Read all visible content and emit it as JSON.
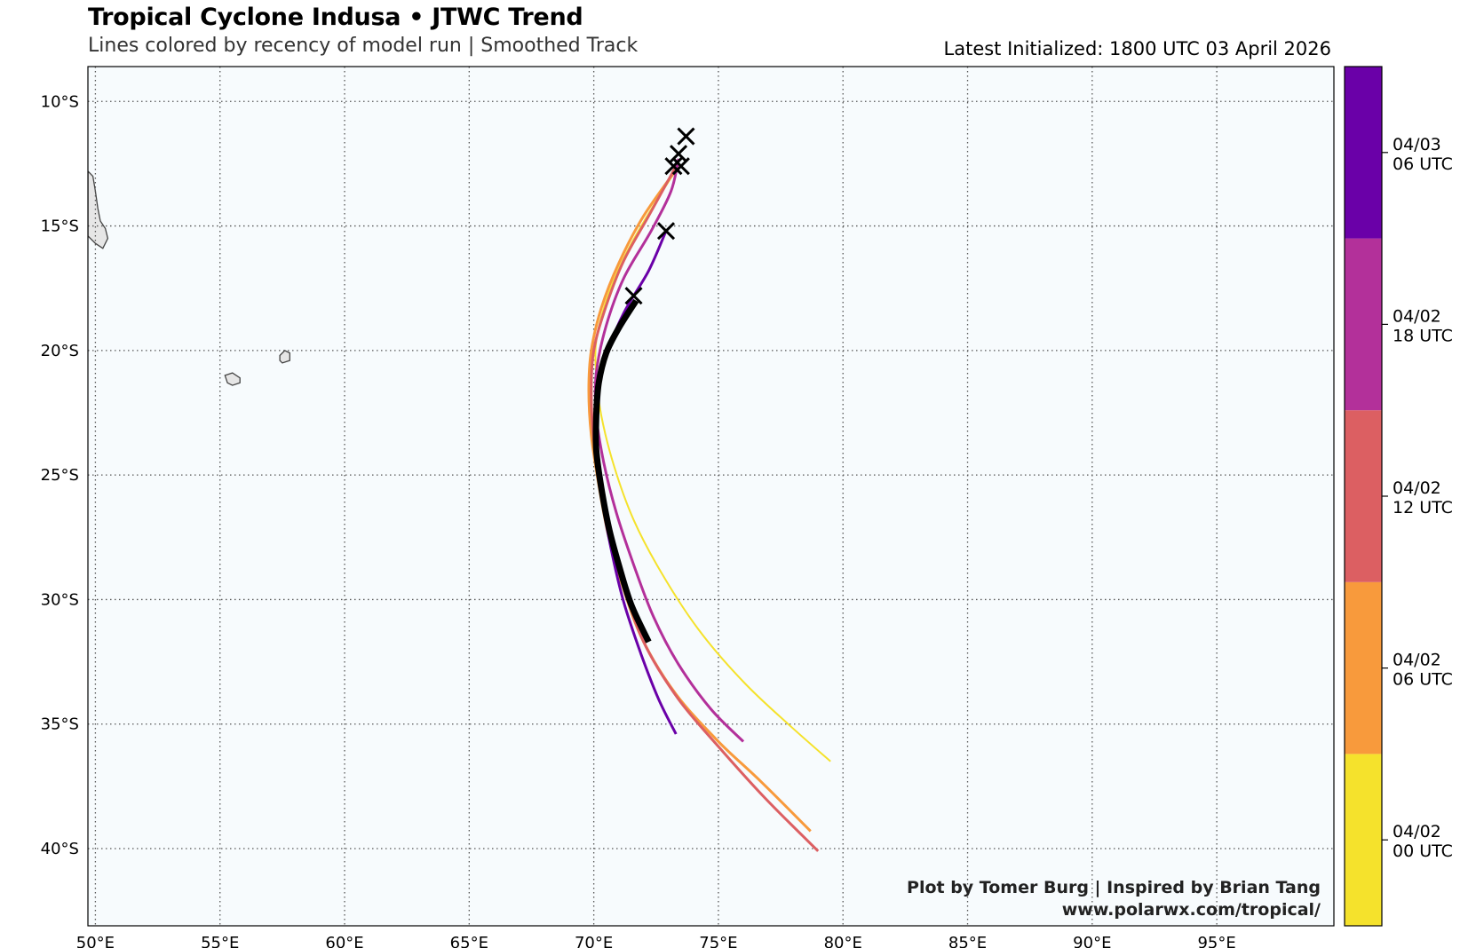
{
  "header": {
    "title": "Tropical Cyclone Indusa • JTWC Trend",
    "subtitle": "Lines colored by recency of model run | Smoothed Track",
    "latest": "Latest Initialized: 1800 UTC 03 April 2026"
  },
  "credits": {
    "line1": "Plot by Tomer Burg | Inspired by Brian Tang",
    "line2": "www.polarwx.com/tropical/"
  },
  "map": {
    "extent": {
      "lon": [
        49.7,
        99.7
      ],
      "lat": [
        -43.1,
        -8.6
      ]
    },
    "background": "#f7fbfd",
    "grid_color": "#555555",
    "land_color": "#e6e6e6",
    "lon_ticks": [
      {
        "value": 50,
        "label": "50°E"
      },
      {
        "value": 55,
        "label": "55°E"
      },
      {
        "value": 60,
        "label": "60°E"
      },
      {
        "value": 65,
        "label": "65°E"
      },
      {
        "value": 70,
        "label": "70°E"
      },
      {
        "value": 75,
        "label": "75°E"
      },
      {
        "value": 80,
        "label": "80°E"
      },
      {
        "value": 85,
        "label": "85°E"
      },
      {
        "value": 90,
        "label": "90°E"
      },
      {
        "value": 95,
        "label": "95°E"
      }
    ],
    "lat_ticks": [
      {
        "value": -10,
        "label": "10°S"
      },
      {
        "value": -15,
        "label": "15°S"
      },
      {
        "value": -20,
        "label": "20°S"
      },
      {
        "value": -25,
        "label": "25°S"
      },
      {
        "value": -30,
        "label": "30°S"
      },
      {
        "value": -35,
        "label": "35°S"
      },
      {
        "value": -40,
        "label": "40°S"
      }
    ],
    "islands": [
      {
        "name": "madagascar-coast",
        "points": [
          [
            49.7,
            -12.8
          ],
          [
            49.9,
            -13.0
          ],
          [
            50.0,
            -13.6
          ],
          [
            50.1,
            -14.3
          ],
          [
            50.2,
            -14.8
          ],
          [
            50.4,
            -15.1
          ],
          [
            50.5,
            -15.5
          ],
          [
            50.3,
            -15.9
          ],
          [
            50.0,
            -15.7
          ],
          [
            49.7,
            -15.4
          ]
        ]
      },
      {
        "name": "reunion",
        "points": [
          [
            55.2,
            -21.0
          ],
          [
            55.5,
            -20.9
          ],
          [
            55.8,
            -21.1
          ],
          [
            55.8,
            -21.3
          ],
          [
            55.5,
            -21.4
          ],
          [
            55.3,
            -21.3
          ]
        ]
      },
      {
        "name": "mauritius",
        "points": [
          [
            57.4,
            -20.2
          ],
          [
            57.6,
            -20.0
          ],
          [
            57.8,
            -20.1
          ],
          [
            57.8,
            -20.4
          ],
          [
            57.5,
            -20.5
          ],
          [
            57.4,
            -20.4
          ]
        ]
      }
    ]
  },
  "tracks": [
    {
      "run": "04/02 00 UTC",
      "color": "#f5e22c",
      "width": 2,
      "points": [
        [
          73.4,
          -12.6
        ],
        [
          72.2,
          -14.5
        ],
        [
          71.2,
          -16.3
        ],
        [
          70.5,
          -18.0
        ],
        [
          70.1,
          -19.6
        ],
        [
          70.1,
          -21.0
        ],
        [
          70.3,
          -22.6
        ],
        [
          70.8,
          -24.6
        ],
        [
          71.6,
          -26.8
        ],
        [
          72.7,
          -28.9
        ],
        [
          74.2,
          -31.2
        ],
        [
          76.0,
          -33.3
        ],
        [
          77.8,
          -35.0
        ],
        [
          79.5,
          -36.5
        ]
      ]
    },
    {
      "run": "04/02 06 UTC",
      "color": "#f89a3c",
      "width": 3,
      "points": [
        [
          73.4,
          -12.6
        ],
        [
          72.0,
          -14.6
        ],
        [
          71.0,
          -16.5
        ],
        [
          70.3,
          -18.3
        ],
        [
          69.9,
          -20.0
        ],
        [
          69.8,
          -21.6
        ],
        [
          69.9,
          -23.4
        ],
        [
          70.2,
          -25.4
        ],
        [
          70.6,
          -27.5
        ],
        [
          71.2,
          -29.6
        ],
        [
          72.0,
          -31.7
        ],
        [
          73.3,
          -33.8
        ],
        [
          75.0,
          -35.7
        ],
        [
          76.7,
          -37.3
        ],
        [
          78.7,
          -39.3
        ]
      ]
    },
    {
      "run": "04/02 12 UTC",
      "color": "#dc5f62",
      "width": 3,
      "points": [
        [
          73.3,
          -12.6
        ],
        [
          72.2,
          -14.6
        ],
        [
          71.2,
          -16.4
        ],
        [
          70.5,
          -18.2
        ],
        [
          70.0,
          -20.0
        ],
        [
          69.9,
          -21.8
        ],
        [
          70.0,
          -23.6
        ],
        [
          70.3,
          -25.6
        ],
        [
          70.7,
          -27.7
        ],
        [
          71.3,
          -29.8
        ],
        [
          72.1,
          -31.9
        ],
        [
          73.4,
          -34.0
        ],
        [
          75.0,
          -35.9
        ],
        [
          76.9,
          -38.0
        ],
        [
          79.0,
          -40.1
        ]
      ]
    },
    {
      "run": "04/02 18 UTC",
      "color": "#b3309a",
      "width": 3,
      "points": [
        [
          73.4,
          -12.3
        ],
        [
          73.1,
          -13.6
        ],
        [
          72.3,
          -15.2
        ],
        [
          71.2,
          -17.1
        ],
        [
          70.5,
          -19.0
        ],
        [
          70.1,
          -20.9
        ],
        [
          70.1,
          -22.6
        ],
        [
          70.4,
          -24.5
        ],
        [
          70.9,
          -26.5
        ],
        [
          71.6,
          -28.6
        ],
        [
          72.4,
          -30.7
        ],
        [
          73.4,
          -32.6
        ],
        [
          74.7,
          -34.4
        ],
        [
          76.0,
          -35.7
        ]
      ]
    },
    {
      "run": "04/03 06 UTC",
      "color": "#6a00a8",
      "width": 3,
      "points": [
        [
          72.9,
          -15.2
        ],
        [
          72.2,
          -16.8
        ],
        [
          71.2,
          -18.5
        ],
        [
          70.5,
          -20.2
        ],
        [
          70.1,
          -22.0
        ],
        [
          70.1,
          -23.8
        ],
        [
          70.3,
          -25.8
        ],
        [
          70.7,
          -28.0
        ],
        [
          71.2,
          -30.1
        ],
        [
          71.9,
          -32.2
        ],
        [
          72.6,
          -34.0
        ],
        [
          73.3,
          -35.4
        ]
      ]
    },
    {
      "run": "latest",
      "color": "#000000",
      "width": 7,
      "points": [
        [
          71.7,
          -18.0
        ],
        [
          71.0,
          -19.1
        ],
        [
          70.5,
          -20.1
        ],
        [
          70.2,
          -21.3
        ],
        [
          70.1,
          -22.6
        ],
        [
          70.1,
          -24.0
        ],
        [
          70.3,
          -25.5
        ],
        [
          70.6,
          -27.1
        ],
        [
          71.0,
          -28.6
        ],
        [
          71.5,
          -30.2
        ],
        [
          72.2,
          -31.7
        ]
      ]
    }
  ],
  "markers": [
    {
      "lon": 73.7,
      "lat": -11.4
    },
    {
      "lon": 73.4,
      "lat": -12.1
    },
    {
      "lon": 73.5,
      "lat": -12.6
    },
    {
      "lon": 73.2,
      "lat": -12.6
    },
    {
      "lon": 72.9,
      "lat": -15.2
    },
    {
      "lon": 71.6,
      "lat": -17.8
    }
  ],
  "colorbar": {
    "bands": [
      {
        "color": "#f5e22c",
        "label_l1": "04/02",
        "label_l2": "00 UTC"
      },
      {
        "color": "#f89a3c",
        "label_l1": "04/02",
        "label_l2": "06 UTC"
      },
      {
        "color": "#dc5f62",
        "label_l1": "04/02",
        "label_l2": "12 UTC"
      },
      {
        "color": "#b3309a",
        "label_l1": "04/02",
        "label_l2": "18 UTC"
      },
      {
        "color": "#6a00a8",
        "label_l1": "04/03",
        "label_l2": "06 UTC"
      }
    ]
  }
}
